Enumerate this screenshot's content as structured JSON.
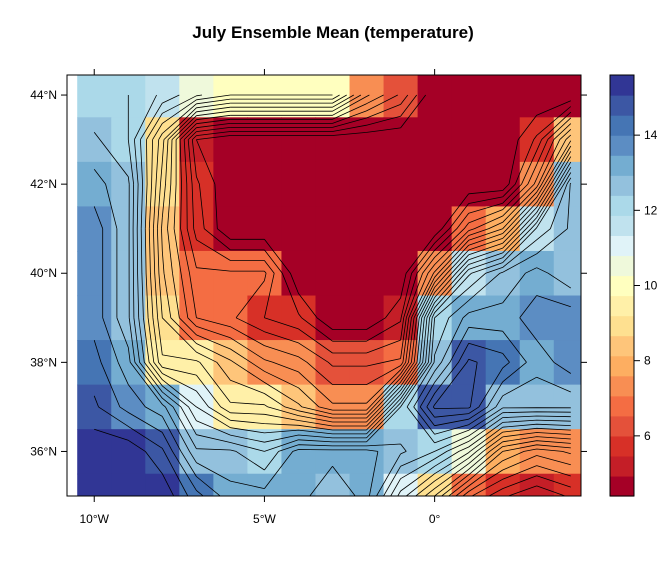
{
  "chart_data": {
    "type": "heatmap",
    "title": "July Ensemble Mean (temperature)",
    "xlabel": "",
    "ylabel": "",
    "x_ticks": [
      {
        "value": -10,
        "label": "10°W"
      },
      {
        "value": -5,
        "label": "5°W"
      },
      {
        "value": 0,
        "label": "0°"
      }
    ],
    "y_ticks": [
      {
        "value": 36,
        "label": "36°N"
      },
      {
        "value": 38,
        "label": "38°N"
      },
      {
        "value": 40,
        "label": "40°N"
      },
      {
        "value": 42,
        "label": "42°N"
      },
      {
        "value": 44,
        "label": "44°N"
      }
    ],
    "colorbar": {
      "range": [
        4.4,
        15.6
      ],
      "ticks": [
        {
          "value": 6,
          "label": "6"
        },
        {
          "value": 8,
          "label": "8"
        },
        {
          "value": 10,
          "label": "10"
        },
        {
          "value": 12,
          "label": "12"
        },
        {
          "value": 14,
          "label": "14"
        }
      ],
      "colors": [
        "#a50026",
        "#c41e27",
        "#d73027",
        "#e4513a",
        "#f46d43",
        "#f88e53",
        "#fdae61",
        "#fec57a",
        "#fee090",
        "#fff0a8",
        "#ffffbf",
        "#eff9db",
        "#e0f3f8",
        "#c0e2ee",
        "#abd9e9",
        "#93c1dd",
        "#74add1",
        "#5c8dc3",
        "#4575b4",
        "#3c57a4",
        "#313695"
      ]
    },
    "x_range": [
      -10.8,
      4.3
    ],
    "y_range": [
      35,
      44.45
    ],
    "lon": [
      -10,
      -9,
      -8,
      -7,
      -6,
      -5,
      -4,
      -3,
      -2,
      -1,
      0,
      1,
      2,
      3,
      4
    ],
    "lat": [
      44,
      43,
      42,
      41,
      40,
      39,
      38,
      37,
      36,
      35
    ],
    "grid_values": [
      [
        12.0,
        12.0,
        11.4,
        10.6,
        10.0,
        10.0,
        10.0,
        10.0,
        7.6,
        6.4,
        4.5,
        4.5,
        4.5,
        4.5,
        4.5
      ],
      [
        12.6,
        12.0,
        9.2,
        5.0,
        4.5,
        4.5,
        4.5,
        4.5,
        4.5,
        4.5,
        4.5,
        4.5,
        4.5,
        5.6,
        8.4
      ],
      [
        13.2,
        12.6,
        8.8,
        5.6,
        4.5,
        4.5,
        4.5,
        4.5,
        4.5,
        4.5,
        4.5,
        4.5,
        4.5,
        7.2,
        12.6
      ],
      [
        13.8,
        12.6,
        8.4,
        5.8,
        4.5,
        4.5,
        4.5,
        4.5,
        4.5,
        4.5,
        4.5,
        6.8,
        8.0,
        11.6,
        12.6
      ],
      [
        13.8,
        12.6,
        8.6,
        6.6,
        6.6,
        6.6,
        4.5,
        4.5,
        4.5,
        4.5,
        7.6,
        11.4,
        12.6,
        13.2,
        12.6
      ],
      [
        13.8,
        12.6,
        9.0,
        7.0,
        6.6,
        6.0,
        5.6,
        4.5,
        4.5,
        5.4,
        12.0,
        13.2,
        13.2,
        13.8,
        13.8
      ],
      [
        14.2,
        13.2,
        9.6,
        9.6,
        8.6,
        7.6,
        7.2,
        6.4,
        6.4,
        6.6,
        12.6,
        14.6,
        14.2,
        13.2,
        13.8
      ],
      [
        14.6,
        13.8,
        13.2,
        11.0,
        9.6,
        9.6,
        8.6,
        7.6,
        7.6,
        12.0,
        14.6,
        14.6,
        12.6,
        12.6,
        12.6
      ],
      [
        15.4,
        15.4,
        14.6,
        12.6,
        12.6,
        12.0,
        13.2,
        13.2,
        13.2,
        12.6,
        12.0,
        10.6,
        8.0,
        7.2,
        7.6
      ],
      [
        15.4,
        15.4,
        15.4,
        14.2,
        13.2,
        13.2,
        13.2,
        12.6,
        13.2,
        10.8,
        9.0,
        6.6,
        5.6,
        5.0,
        5.6
      ]
    ]
  }
}
